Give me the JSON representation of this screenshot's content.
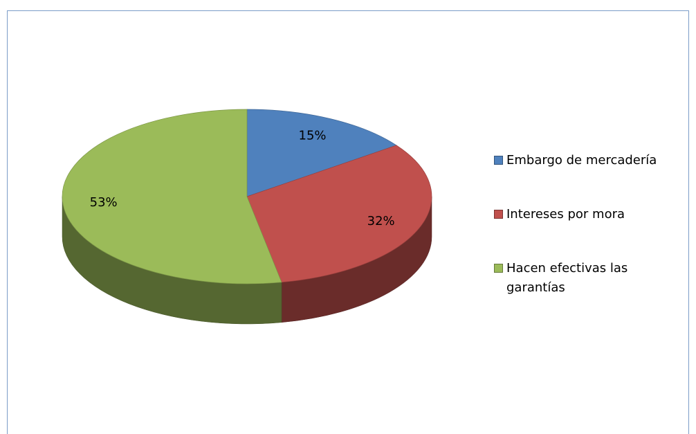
{
  "chart_data": {
    "type": "pie",
    "categories": [
      "Embargo de mercadería",
      "Intereses por mora",
      "Hacen efectivas las garantías"
    ],
    "values": [
      15,
      32,
      53
    ],
    "value_labels": [
      "15%",
      "32%",
      "53%"
    ],
    "colors": [
      "#4f81bd",
      "#c0504d",
      "#9bbb59"
    ],
    "legend": "right"
  }
}
